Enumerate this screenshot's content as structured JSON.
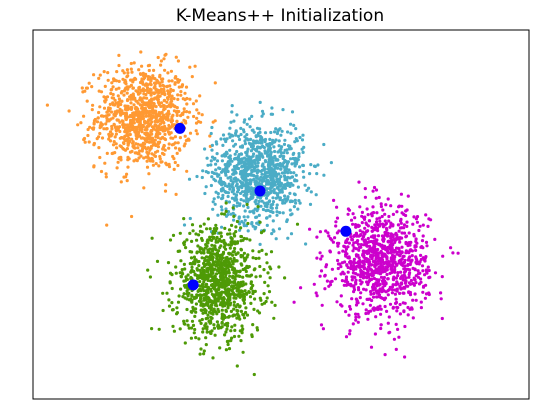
{
  "chart_data": {
    "type": "scatter",
    "title": "K-Means++ Initialization",
    "xlabel": "",
    "ylabel": "",
    "axes_ticks": false,
    "grid": false,
    "clusters": [
      {
        "color": "#FF9933",
        "center": [
          -6.2,
          5.1
        ],
        "spread": [
          1.25,
          1.15
        ],
        "n": 1000
      },
      {
        "color": "#4BACC6",
        "center": [
          -0.2,
          2.6
        ],
        "spread": [
          1.2,
          1.1
        ],
        "n": 1000
      },
      {
        "color": "#4E9A06",
        "center": [
          -2.3,
          -2.3
        ],
        "spread": [
          1.15,
          1.2
        ],
        "n": 1000
      },
      {
        "color": "#CC00CC",
        "center": [
          6.2,
          -1.4
        ],
        "spread": [
          1.25,
          1.2
        ],
        "n": 1000
      }
    ],
    "initial_centroids": {
      "color": "#0000FF",
      "points": [
        [
          -4.3,
          4.6
        ],
        [
          -0.1,
          1.8
        ],
        [
          -3.6,
          -2.4
        ],
        [
          4.4,
          0.0
        ]
      ]
    },
    "xlim": [
      -12,
      14
    ],
    "ylim": [
      -7.5,
      9
    ]
  }
}
